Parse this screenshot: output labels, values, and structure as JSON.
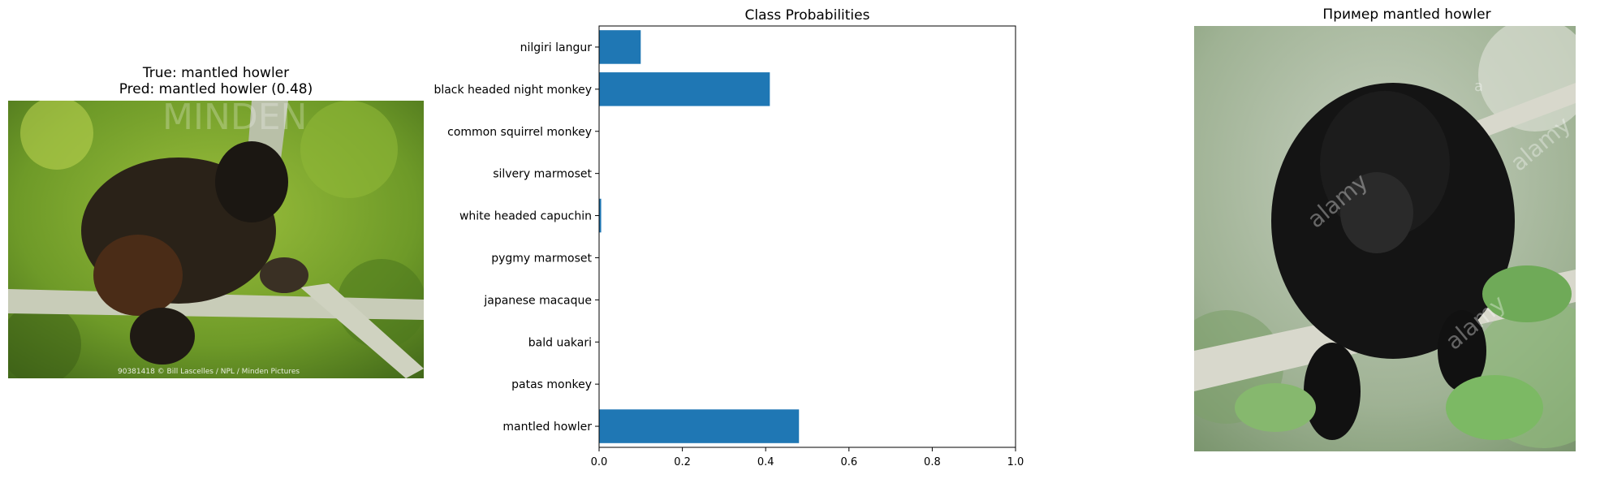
{
  "left_panel": {
    "title_line1": "True: mantled howler",
    "title_line2": "Pred: mantled howler (0.48)",
    "image_label": "mantled howler monkey on branch",
    "watermark_text": "MINDEN",
    "caption": "90381418 © Bill Lascelles / NPL / Minden Pictures"
  },
  "right_panel": {
    "title": "Пример mantled howler",
    "image_label": "mantled howler monkey on branch",
    "watermark_text": "alamy",
    "watermark_mark": "a"
  },
  "colors": {
    "bar": "#1f77b4",
    "left_bg": "#6f9b2a",
    "right_bg": "#a9b9a2"
  },
  "chart_data": {
    "type": "bar",
    "orientation": "horizontal",
    "title": "Class Probabilities",
    "categories": [
      "mantled howler",
      "patas monkey",
      "bald uakari",
      "japanese macaque",
      "pygmy marmoset",
      "white headed capuchin",
      "silvery marmoset",
      "common squirrel monkey",
      "black headed night monkey",
      "nilgiri langur"
    ],
    "values": [
      0.48,
      0.0,
      0.0,
      0.0,
      0.0,
      0.005,
      0.0,
      0.0,
      0.41,
      0.1
    ],
    "xlim": [
      0,
      1.0
    ],
    "xticks": [
      "0.0",
      "0.2",
      "0.4",
      "0.6",
      "0.8",
      "1.0"
    ],
    "xlabel": "",
    "ylabel": ""
  }
}
